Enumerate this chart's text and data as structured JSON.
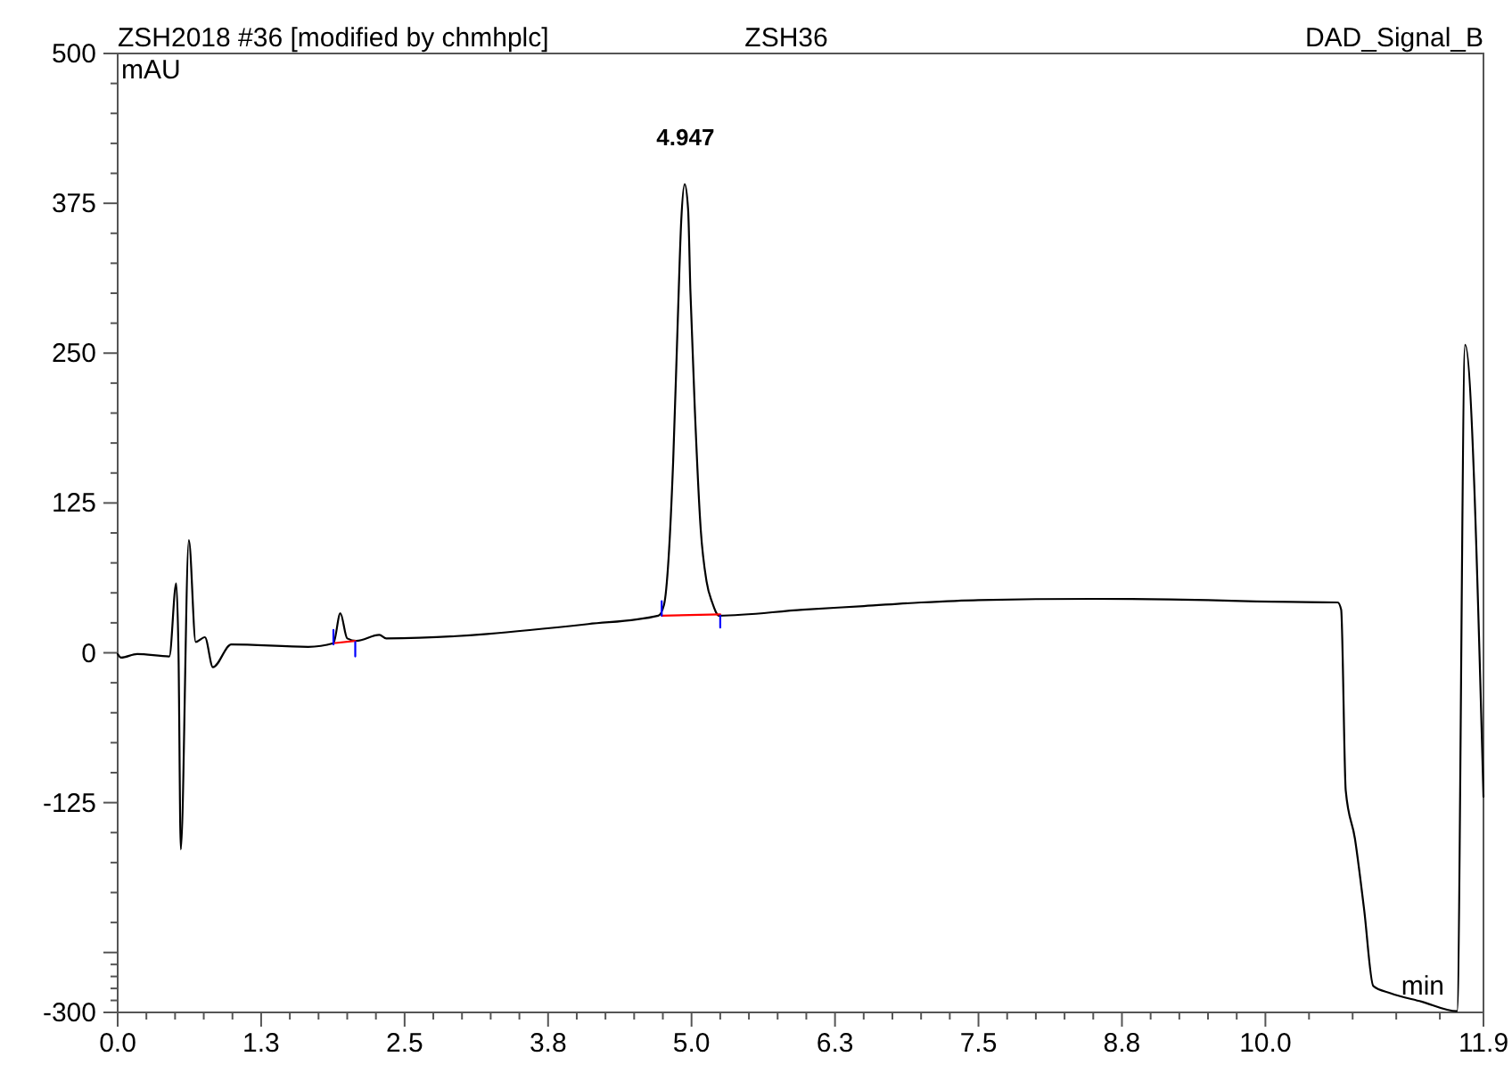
{
  "chart_data": {
    "type": "line",
    "title": "ZSH2018 #36 [modified by chmhplc]",
    "subtitle": "ZSH36",
    "xlabel": "min",
    "ylabel": "mAU",
    "annotations": [
      "DAD_Signal_B",
      {
        "text": "4.947",
        "x": 4.947,
        "y": 391
      }
    ],
    "xlim": [
      0,
      11.9
    ],
    "ylim": [
      -300,
      500
    ],
    "xticks": [
      {
        "value": 0,
        "label": "0.0"
      },
      {
        "value": 1.25,
        "label": "1.3"
      },
      {
        "value": 2.5,
        "label": "2.5"
      },
      {
        "value": 3.75,
        "label": "3.8"
      },
      {
        "value": 5,
        "label": "5.0"
      },
      {
        "value": 6.25,
        "label": "6.3"
      },
      {
        "value": 7.5,
        "label": "7.5"
      },
      {
        "value": 8.75,
        "label": "8.8"
      },
      {
        "value": 10,
        "label": "10.0"
      },
      {
        "value": 11.9,
        "label": "11.9"
      }
    ],
    "yticks": [
      500,
      375,
      250,
      125,
      0,
      -125,
      {
        "value": -250,
        "label": null
      },
      -300
    ],
    "grid": false,
    "marker": "none",
    "line_style": "solid",
    "series": [
      {
        "color": "#000000",
        "x": [
          0,
          0.03,
          0.17,
          0.45,
          0.51,
          0.53,
          0.55,
          0.62,
          0.68,
          0.76,
          0.83,
          0.99,
          1.66,
          1.88,
          1.94,
          2.0,
          2.08,
          2.28,
          2.34,
          4.1,
          4.71,
          4.76,
          4.8,
          4.84,
          4.88,
          4.91,
          4.94,
          4.97,
          4.99,
          5.03,
          5.08,
          5.13,
          5.18,
          5.24,
          5.97,
          6.5,
          7.0,
          7.5,
          8.5,
          9.5,
          9.85,
          10.63,
          10.66,
          10.7,
          10.78,
          10.86,
          10.94,
          11.09,
          11.36,
          11.67,
          11.74,
          11.9
        ],
        "values": [
          -1,
          -4,
          -1,
          -3,
          58,
          -1,
          -164,
          94,
          9,
          13,
          -12,
          7,
          5,
          8,
          33,
          12,
          10,
          15,
          12,
          24,
          31,
          40,
          79,
          160,
          277,
          360,
          391,
          370,
          302,
          200,
          103,
          60,
          42,
          31,
          36,
          39,
          42,
          44,
          45,
          44,
          43,
          42,
          36,
          -115,
          -155,
          -214,
          -278,
          -284,
          -291,
          -299,
          257,
          -120
        ]
      },
      {
        "color": "#ff0000",
        "x": [
          1.88,
          2.07,
          null,
          4.74,
          5.25
        ],
        "values": [
          8,
          10,
          null,
          31,
          32
        ]
      },
      {
        "color": "#0000ff",
        "x": [
          1.88,
          1.88,
          null,
          2.07,
          2.07,
          null,
          4.74,
          4.74,
          null,
          5.25,
          5.25
        ],
        "values": [
          7,
          19,
          null,
          9,
          -3,
          null,
          31,
          43,
          null,
          31,
          21
        ]
      }
    ]
  }
}
